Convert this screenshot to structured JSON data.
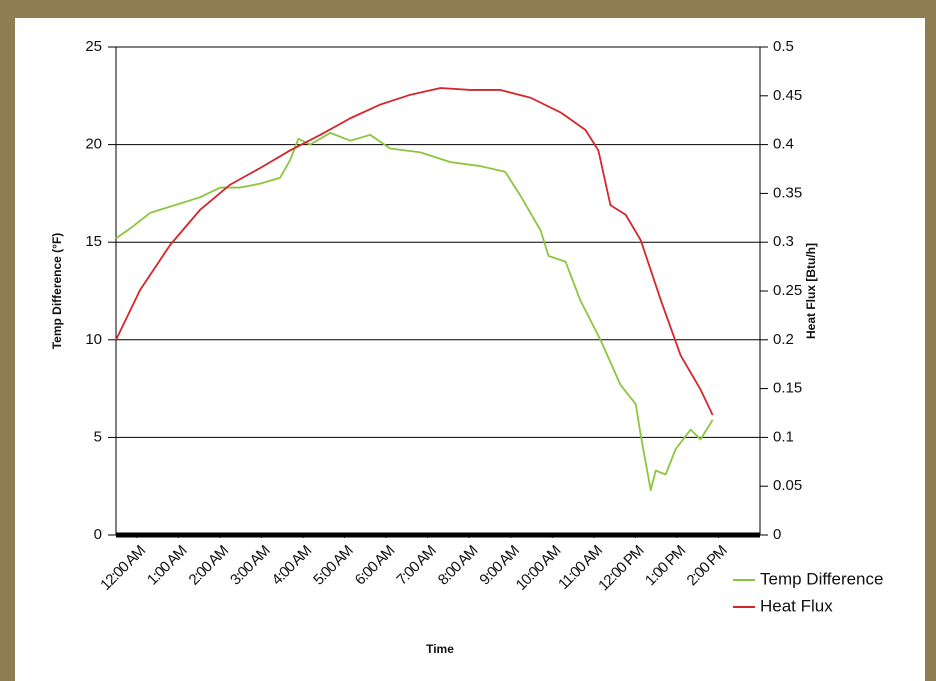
{
  "chart_data": {
    "type": "line",
    "x_label": "Time",
    "y_label": "Temp Difference (°F)",
    "y2_label": "Heat Flux [Btu/h]",
    "xlim": [
      0,
      15.5
    ],
    "xticks": [
      {
        "value": 0.5,
        "label": "12:00 AM"
      },
      {
        "value": 1.5,
        "label": "1:00 AM"
      },
      {
        "value": 2.5,
        "label": "2:00 AM"
      },
      {
        "value": 3.5,
        "label": "3:00 AM"
      },
      {
        "value": 4.5,
        "label": "4:00 AM"
      },
      {
        "value": 5.5,
        "label": "5:00 AM"
      },
      {
        "value": 6.5,
        "label": "6:00 AM"
      },
      {
        "value": 7.5,
        "label": "7:00 AM"
      },
      {
        "value": 8.5,
        "label": "8:00 AM"
      },
      {
        "value": 9.5,
        "label": "9:00 AM"
      },
      {
        "value": 10.5,
        "label": "10:00 AM"
      },
      {
        "value": 11.5,
        "label": "11:00 AM"
      },
      {
        "value": 12.5,
        "label": "12:00 PM"
      },
      {
        "value": 13.5,
        "label": "1:00 PM"
      },
      {
        "value": 14.5,
        "label": "2:00 PM"
      }
    ],
    "ylim": [
      0,
      25
    ],
    "yticks": [
      0,
      5,
      10,
      15,
      20,
      25
    ],
    "y2lim": [
      0,
      0.5
    ],
    "y2ticks": [
      0,
      0.05,
      0.1,
      0.15,
      0.2,
      0.25,
      0.3,
      0.35,
      0.4,
      0.45,
      0.5
    ],
    "grid": true,
    "series": [
      {
        "name": "Temp Difference",
        "color": "#8cc63f",
        "x": [
          0,
          0.34,
          0.82,
          1.42,
          2.02,
          2.51,
          2.99,
          3.47,
          3.95,
          4.19,
          4.39,
          4.67,
          5.16,
          5.64,
          6.12,
          6.6,
          7.33,
          8.05,
          8.77,
          9.37,
          9.73,
          10.22,
          10.41,
          10.82,
          11.18,
          11.66,
          12.14,
          12.51,
          12.63,
          12.87,
          12.99,
          13.23,
          13.47,
          13.83,
          14.07,
          14.36
        ],
        "values": [
          15.2,
          15.7,
          16.5,
          16.9,
          17.3,
          17.8,
          17.8,
          18.0,
          18.3,
          19.2,
          20.3,
          20.0,
          20.6,
          20.2,
          20.5,
          19.8,
          19.6,
          19.1,
          18.9,
          18.6,
          17.4,
          15.6,
          14.3,
          14.0,
          12.0,
          10.0,
          7.7,
          6.7,
          5.1,
          2.3,
          3.3,
          3.1,
          4.4,
          5.4,
          4.9,
          5.9
        ]
      },
      {
        "name": "Heat Flux",
        "color": "#d4262c",
        "axis": "y2",
        "x": [
          0,
          0.58,
          1.3,
          2.02,
          2.75,
          3.47,
          4.19,
          4.92,
          5.64,
          6.36,
          7.08,
          7.81,
          8.53,
          9.25,
          9.98,
          10.7,
          11.3,
          11.61,
          11.9,
          12.27,
          12.63,
          13.11,
          13.59,
          14.07,
          14.36
        ],
        "values": [
          0.2,
          0.251,
          0.297,
          0.333,
          0.359,
          0.376,
          0.394,
          0.41,
          0.427,
          0.441,
          0.451,
          0.458,
          0.456,
          0.456,
          0.448,
          0.433,
          0.415,
          0.394,
          0.338,
          0.328,
          0.302,
          0.241,
          0.184,
          0.149,
          0.123
        ]
      }
    ]
  }
}
